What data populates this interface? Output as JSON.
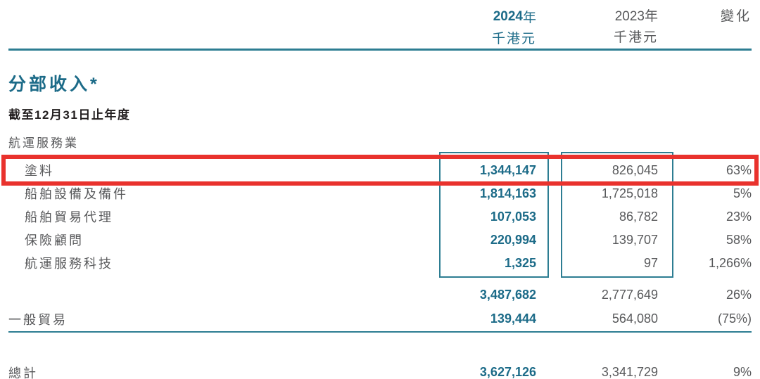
{
  "header": {
    "col2024": {
      "year_num": "2024",
      "year_suffix": "年",
      "unit": "千港元"
    },
    "col2023": {
      "year": "2023年",
      "unit": "千港元"
    },
    "change_label": "變化"
  },
  "title": "分部收入*",
  "period": "截至12月31日止年度",
  "section_label": "航運服務業",
  "table": {
    "shipping_rows": [
      {
        "label": "塗料",
        "y2024": "1,344,147",
        "y2023": "826,045",
        "change": "63%",
        "highlighted": true
      },
      {
        "label": "船舶設備及備件",
        "y2024": "1,814,163",
        "y2023": "1,725,018",
        "change": "5%",
        "highlighted": false
      },
      {
        "label": "船舶貿易代理",
        "y2024": "107,053",
        "y2023": "86,782",
        "change": "23%",
        "highlighted": false
      },
      {
        "label": "保險顧問",
        "y2024": "220,994",
        "y2023": "139,707",
        "change": "58%",
        "highlighted": false
      },
      {
        "label": "航運服務科技",
        "y2024": "1,325",
        "y2023": "97",
        "change": "1,266%",
        "highlighted": false
      }
    ],
    "subtotal": {
      "y2024": "3,487,682",
      "y2023": "2,777,649",
      "change": "26%"
    },
    "general_trade": {
      "label": "一般貿易",
      "y2024": "139,444",
      "y2023": "564,080",
      "change": "(75%)"
    },
    "total": {
      "label": "總計",
      "y2024": "3,627,126",
      "y2023": "3,341,729",
      "change": "9%"
    }
  },
  "colors": {
    "teal_text": "#1c6b88",
    "teal_line": "#2d7d92",
    "gray_text": "#58595b",
    "dark_text": "#221e1f",
    "highlight_red": "#e9322d"
  }
}
